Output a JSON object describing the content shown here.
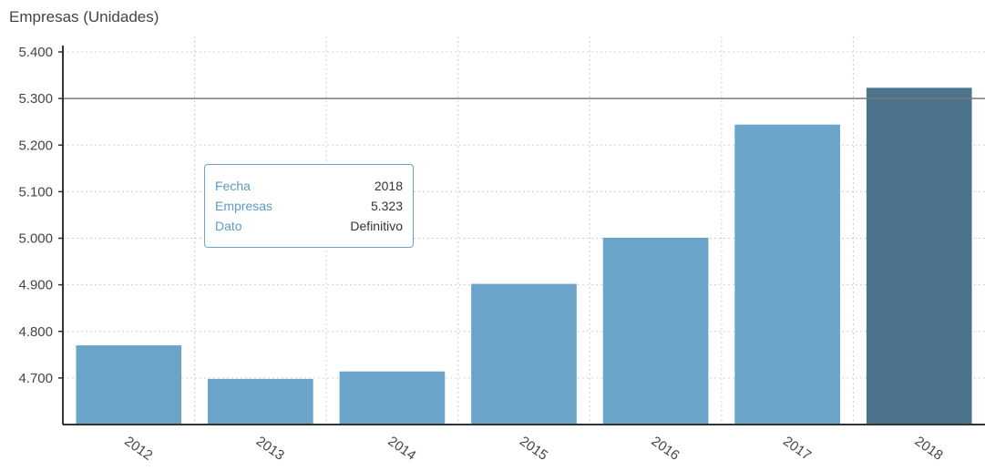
{
  "chart_data": {
    "type": "bar",
    "title": "Empresas (Unidades)",
    "xlabel": "",
    "ylabel": "",
    "categories": [
      "2012",
      "2013",
      "2014",
      "2015",
      "2016",
      "2017",
      "2018"
    ],
    "values": [
      4770,
      4698,
      4714,
      4902,
      5001,
      5244,
      5323
    ],
    "ylim": [
      4600,
      5400
    ],
    "y_ticks": [
      "4.700",
      "4.800",
      "4.900",
      "5.000",
      "5.100",
      "5.200",
      "5.300",
      "5.400"
    ],
    "y_tick_values": [
      4700,
      4800,
      4900,
      5000,
      5100,
      5200,
      5300,
      5400
    ],
    "reference_line": 5300,
    "grid": true,
    "bar_color": "#6aa5c9",
    "highlight_color": "#4b738c",
    "highlight_index": 6
  },
  "tooltip": {
    "rows": [
      {
        "label": "Fecha",
        "value": "2018"
      },
      {
        "label": "Empresas",
        "value": "5.323"
      },
      {
        "label": "Dato",
        "value": "Definitivo"
      }
    ]
  }
}
